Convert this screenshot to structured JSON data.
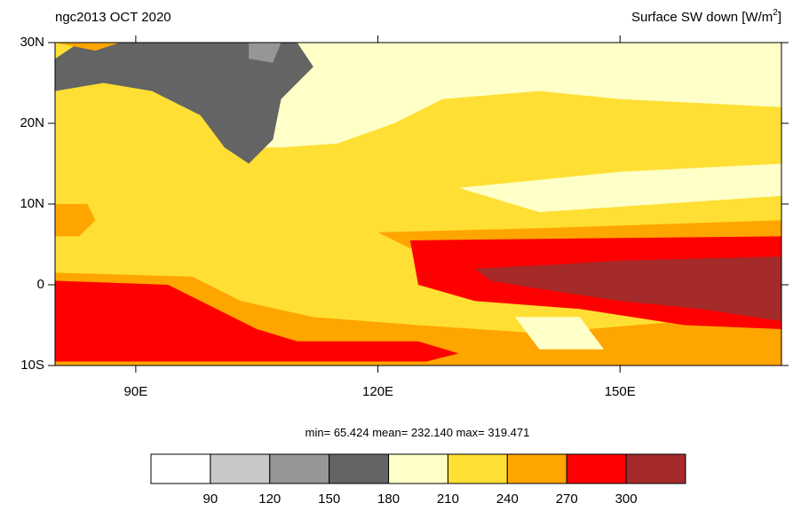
{
  "header": {
    "left_title": "ngc2013 OCT 2020",
    "right_title": {
      "text": "Surface SW down [W/m",
      "sup": "2",
      "close": "]"
    }
  },
  "map": {
    "lonlim": [
      80,
      170
    ],
    "latlim": [
      -10,
      30
    ],
    "lonticks": [
      {
        "value": 90,
        "label": "90E"
      },
      {
        "value": 120,
        "label": "120E"
      },
      {
        "value": 150,
        "label": "150E"
      }
    ],
    "latticks": [
      {
        "value": 30,
        "label": "30N"
      },
      {
        "value": 20,
        "label": "20N"
      },
      {
        "value": 10,
        "label": "10N"
      },
      {
        "value": 0,
        "label": "0"
      },
      {
        "value": -10,
        "label": "10S"
      }
    ]
  },
  "stats": {
    "min_label": "min=",
    "min": 65.424,
    "mean_label": "mean=",
    "mean": {
      "value": 232.14,
      "label": "232.140"
    },
    "max_label": "max=",
    "max": 319.471
  },
  "colorbar": {
    "levels": [
      90,
      120,
      150,
      180,
      210,
      240,
      270,
      300
    ],
    "colors": [
      "#ffffff",
      "#c8c8c8",
      "#969696",
      "#646464",
      "#ffffc8",
      "#ffdf33",
      "#ffa500",
      "#ff0000",
      "#a52a2a"
    ]
  }
}
